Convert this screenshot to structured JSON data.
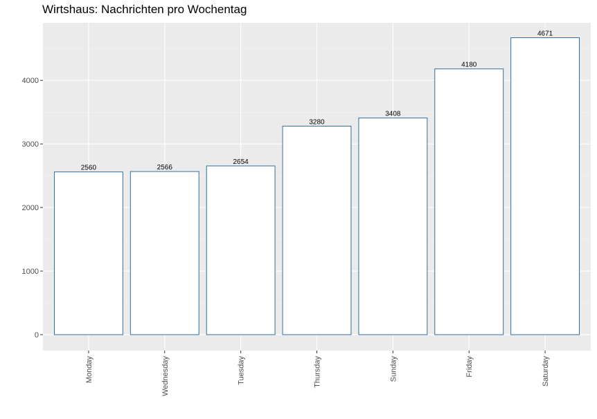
{
  "chart_data": {
    "type": "bar",
    "title": "Wirtshaus: Nachrichten pro Wochentag",
    "xlabel": "",
    "ylabel": "",
    "categories": [
      "Monday",
      "Wednesday",
      "Tuesday",
      "Thursday",
      "Sunday",
      "Friday",
      "Saturday"
    ],
    "values": [
      2560,
      2566,
      2654,
      3280,
      3408,
      4180,
      4671
    ],
    "data_labels": [
      "2560",
      "2566",
      "2654",
      "3280",
      "3408",
      "4180",
      "4671"
    ],
    "yticks": [
      0,
      1000,
      2000,
      3000,
      4000
    ],
    "ytick_labels": [
      "0",
      "1000",
      "2000",
      "3000",
      "4000"
    ],
    "ylim": [
      -250,
      4905
    ],
    "grid": true,
    "x_tick_rotation": "vertical",
    "colors": {
      "panel_background": "#ebebeb",
      "grid_major": "#ffffff",
      "grid_minor": "#f5f5f5",
      "bar_fill": "#ffffff",
      "bar_outline": "#2f6f9f",
      "tick_text": "#4d4d4d",
      "label_text": "#000000"
    }
  }
}
